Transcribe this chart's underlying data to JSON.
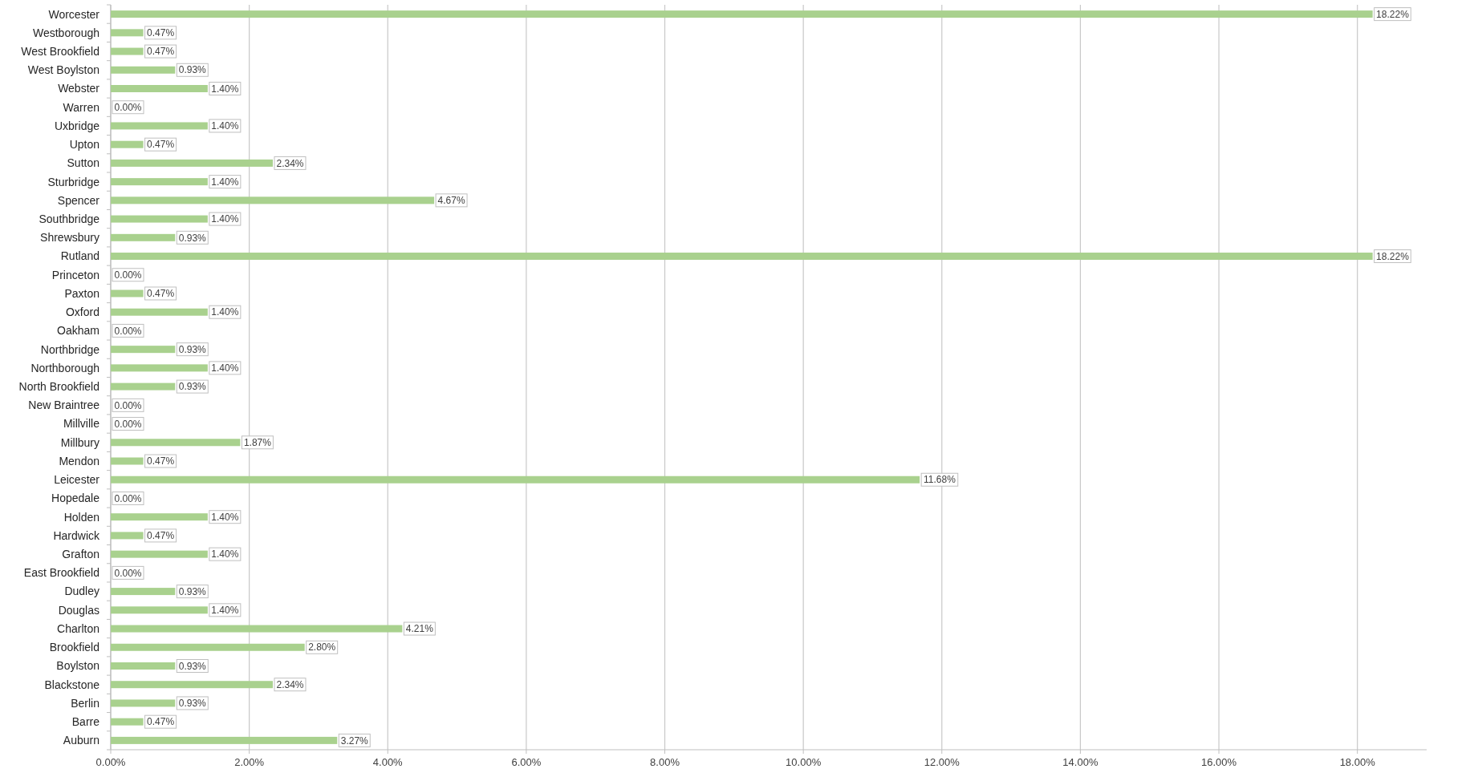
{
  "chart_data": {
    "type": "bar",
    "orientation": "horizontal",
    "categories": [
      "Worcester",
      "Westborough",
      "West Brookfield",
      "West Boylston",
      "Webster",
      "Warren",
      "Uxbridge",
      "Upton",
      "Sutton",
      "Sturbridge",
      "Spencer",
      "Southbridge",
      "Shrewsbury",
      "Rutland",
      "Princeton",
      "Paxton",
      "Oxford",
      "Oakham",
      "Northbridge",
      "Northborough",
      "North Brookfield",
      "New Braintree",
      "Millville",
      "Millbury",
      "Mendon",
      "Leicester",
      "Hopedale",
      "Holden",
      "Hardwick",
      "Grafton",
      "East Brookfield",
      "Dudley",
      "Douglas",
      "Charlton",
      "Brookfield",
      "Boylston",
      "Blackstone",
      "Berlin",
      "Barre",
      "Auburn"
    ],
    "values": [
      18.22,
      0.47,
      0.47,
      0.93,
      1.4,
      0.0,
      1.4,
      0.47,
      2.34,
      1.4,
      4.67,
      1.4,
      0.93,
      18.22,
      0.0,
      0.47,
      1.4,
      0.0,
      0.93,
      1.4,
      0.93,
      0.0,
      0.0,
      1.87,
      0.47,
      11.68,
      0.0,
      1.4,
      0.47,
      1.4,
      0.0,
      0.93,
      1.4,
      4.21,
      2.8,
      0.93,
      2.34,
      0.93,
      0.47,
      3.27
    ],
    "value_labels": [
      "18.22%",
      "0.47%",
      "0.47%",
      "0.93%",
      "1.40%",
      "0.00%",
      "1.40%",
      "0.47%",
      "2.34%",
      "1.40%",
      "4.67%",
      "1.40%",
      "0.93%",
      "18.22%",
      "0.00%",
      "0.47%",
      "1.40%",
      "0.00%",
      "0.93%",
      "1.40%",
      "0.93%",
      "0.00%",
      "0.00%",
      "1.87%",
      "0.47%",
      "11.68%",
      "0.00%",
      "1.40%",
      "0.47%",
      "1.40%",
      "0.00%",
      "0.93%",
      "1.40%",
      "4.21%",
      "2.80%",
      "0.93%",
      "2.34%",
      "0.93%",
      "0.47%",
      "3.27%"
    ],
    "color": "#a9d18e",
    "xlim": [
      0,
      19
    ],
    "xticks": [
      {
        "value": 0,
        "label": "0.00%"
      },
      {
        "value": 2,
        "label": "2.00%"
      },
      {
        "value": 4,
        "label": "4.00%"
      },
      {
        "value": 6,
        "label": "6.00%"
      },
      {
        "value": 8,
        "label": "8.00%"
      },
      {
        "value": 10,
        "label": "10.00%"
      },
      {
        "value": 12,
        "label": "12.00%"
      },
      {
        "value": 14,
        "label": "14.00%"
      },
      {
        "value": 16,
        "label": "16.00%"
      },
      {
        "value": 18,
        "label": "18.00%"
      }
    ],
    "grid": "x"
  }
}
